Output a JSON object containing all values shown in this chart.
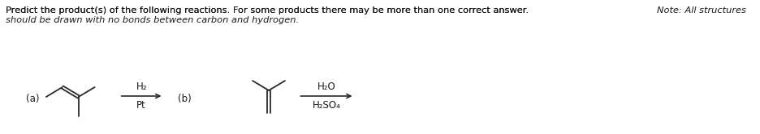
{
  "title_line1_normal": "Predict the product(s) of the following reactions. For some products there may be more than one correct answer. ",
  "title_line1_italic": "Note: All structures",
  "title_line2_italic": "should be drawn with no bonds between carbon and hydrogen.",
  "label_a": "(a)",
  "label_b": "(b)",
  "reagent_a_top": "H₂",
  "reagent_a_bot": "Pt",
  "reagent_b_top": "H₂O",
  "reagent_b_bot": "H₂SO₄",
  "bg_color": "#ffffff",
  "text_color": "#1a1a1a",
  "line_color": "#2a2a2a",
  "font_size_header": 8.2,
  "font_size_labels": 8.5,
  "font_size_reagents": 8.5
}
